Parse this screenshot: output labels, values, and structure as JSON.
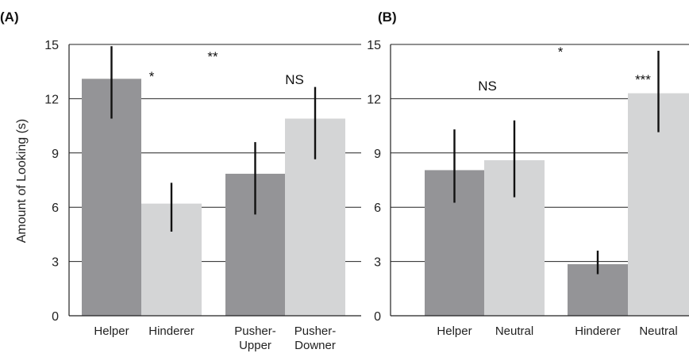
{
  "chart_data": [
    {
      "type": "bar",
      "panel_label": "(A)",
      "ylabel": "Amount of Looking (s)",
      "ylim": [
        0,
        15
      ],
      "yticks": [
        0,
        3,
        6,
        9,
        12,
        15
      ],
      "grid": true,
      "categories": [
        [
          "Helper"
        ],
        [
          "Hinderer"
        ],
        [
          "Pusher-",
          "Upper"
        ],
        [
          "Pusher-",
          "Downer"
        ]
      ],
      "values": [
        13.1,
        6.2,
        7.85,
        10.9
      ],
      "error_low": [
        10.9,
        4.65,
        5.6,
        8.65
      ],
      "error_high": [
        14.9,
        7.35,
        9.6,
        12.65
      ],
      "bar_colors": [
        "#949497",
        "#d4d5d6",
        "#949497",
        "#d4d5d6"
      ],
      "annotations": [
        "*",
        "**",
        "NS"
      ]
    },
    {
      "type": "bar",
      "panel_label": "(B)",
      "ylim": [
        0,
        15
      ],
      "yticks": [
        0,
        3,
        6,
        9,
        12,
        15
      ],
      "grid": true,
      "categories": [
        [
          "Helper"
        ],
        [
          "Neutral"
        ],
        [
          "Hinderer"
        ],
        [
          "Neutral"
        ]
      ],
      "values": [
        8.05,
        8.6,
        2.85,
        12.3
      ],
      "error_low": [
        6.25,
        6.55,
        2.3,
        10.15
      ],
      "error_high": [
        10.3,
        10.8,
        3.6,
        14.65
      ],
      "bar_colors": [
        "#949497",
        "#d4d5d6",
        "#949497",
        "#d4d5d6"
      ],
      "annotations": [
        "*",
        "NS",
        "***"
      ]
    }
  ]
}
